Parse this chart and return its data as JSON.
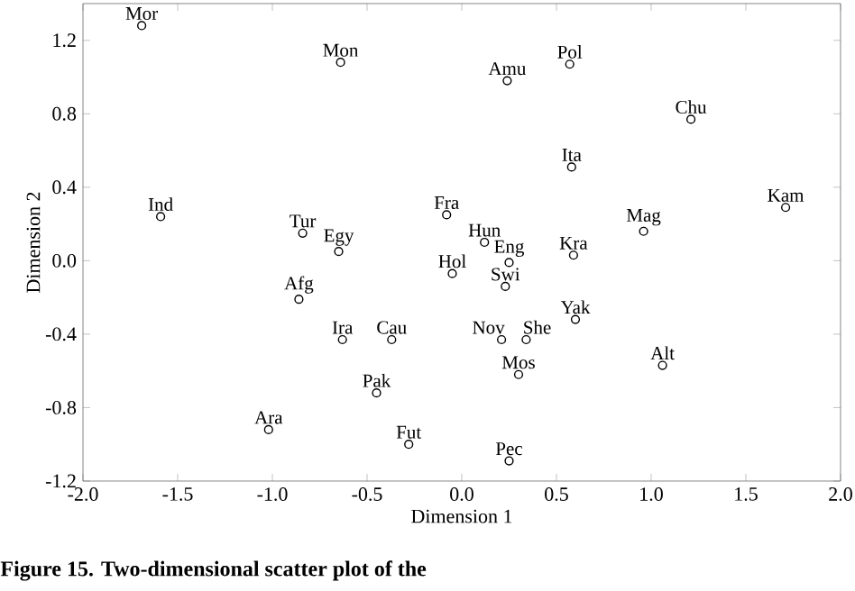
{
  "chart_data": {
    "type": "scatter",
    "xlabel": "Dimension 1",
    "ylabel": "Dimension 2",
    "xlim": [
      -2.0,
      2.0
    ],
    "ylim": [
      -1.2,
      1.4
    ],
    "xticks": [
      {
        "value": -2.0,
        "label": "-2.0"
      },
      {
        "value": -1.5,
        "label": "-1.5"
      },
      {
        "value": -1.0,
        "label": "-1.0"
      },
      {
        "value": -0.5,
        "label": "-0.5"
      },
      {
        "value": 0.0,
        "label": "0.0"
      },
      {
        "value": 0.5,
        "label": "0.5"
      },
      {
        "value": 1.0,
        "label": "1.0"
      },
      {
        "value": 1.5,
        "label": "1.5"
      },
      {
        "value": 2.0,
        "label": "2.0"
      }
    ],
    "yticks": [
      {
        "value": -1.2,
        "label": "-1.2"
      },
      {
        "value": -0.8,
        "label": "-0.8"
      },
      {
        "value": -0.4,
        "label": "-0.4"
      },
      {
        "value": 0.0,
        "label": "0.0"
      },
      {
        "value": 0.4,
        "label": "0.4"
      },
      {
        "value": 0.8,
        "label": "0.8"
      },
      {
        "value": 1.2,
        "label": "1.2"
      }
    ],
    "marker": "circle",
    "grid": false,
    "series": [
      {
        "color": "#000000",
        "x": [
          -1.69,
          -0.64,
          0.24,
          0.57,
          1.21,
          -1.59,
          -0.84,
          -0.65,
          0.58,
          1.71,
          -0.08,
          0.96,
          0.12,
          0.25,
          0.59,
          -0.05,
          -0.86,
          0.23,
          0.6,
          0.21,
          0.34,
          1.06,
          0.3,
          -0.63,
          -0.37,
          -0.45,
          -1.02,
          -0.28,
          0.25
        ],
        "values": [
          1.28,
          1.08,
          0.98,
          1.07,
          0.77,
          0.24,
          0.15,
          0.05,
          0.51,
          0.29,
          0.25,
          0.16,
          0.1,
          -0.01,
          0.03,
          -0.07,
          -0.21,
          -0.14,
          -0.32,
          -0.43,
          -0.43,
          -0.57,
          -0.62,
          -0.43,
          -0.43,
          -0.72,
          -0.92,
          -1.0,
          -1.09
        ]
      }
    ],
    "annotations": [
      {
        "text": "Mor",
        "x": -1.69,
        "y": 1.28
      },
      {
        "text": "Mon",
        "x": -0.64,
        "y": 1.08
      },
      {
        "text": "Amu",
        "x": 0.24,
        "y": 0.98
      },
      {
        "text": "Pol",
        "x": 0.57,
        "y": 1.07
      },
      {
        "text": "Chu",
        "x": 1.21,
        "y": 0.77
      },
      {
        "text": "Ind",
        "x": -1.59,
        "y": 0.24
      },
      {
        "text": "Tur",
        "x": -0.84,
        "y": 0.15
      },
      {
        "text": "Egy",
        "x": -0.65,
        "y": 0.05
      },
      {
        "text": "Ita",
        "x": 0.58,
        "y": 0.51
      },
      {
        "text": "Kam",
        "x": 1.71,
        "y": 0.29
      },
      {
        "text": "Fra",
        "x": -0.08,
        "y": 0.25
      },
      {
        "text": "Mag",
        "x": 0.96,
        "y": 0.16
      },
      {
        "text": "Hun",
        "x": 0.12,
        "y": 0.1
      },
      {
        "text": "Eng",
        "x": 0.25,
        "y": -0.01
      },
      {
        "text": "Kra",
        "x": 0.59,
        "y": 0.03
      },
      {
        "text": "Hol",
        "x": -0.05,
        "y": -0.07
      },
      {
        "text": "Afg",
        "x": -0.86,
        "y": -0.21
      },
      {
        "text": "Swi",
        "x": 0.23,
        "y": -0.14
      },
      {
        "text": "Yak",
        "x": 0.6,
        "y": -0.32
      },
      {
        "text": "Nov",
        "x": 0.21,
        "y": -0.43
      },
      {
        "text": "She",
        "x": 0.34,
        "y": -0.43
      },
      {
        "text": "Alt",
        "x": 1.06,
        "y": -0.57
      },
      {
        "text": "Mos",
        "x": 0.3,
        "y": -0.62
      },
      {
        "text": "Ira",
        "x": -0.63,
        "y": -0.43
      },
      {
        "text": "Cau",
        "x": -0.37,
        "y": -0.43
      },
      {
        "text": "Pak",
        "x": -0.45,
        "y": -0.72
      },
      {
        "text": "Ara",
        "x": -1.02,
        "y": -0.92
      },
      {
        "text": "Fut",
        "x": -0.28,
        "y": -1.0
      },
      {
        "text": "Pec",
        "x": 0.25,
        "y": -1.09
      },
      "Figure 15. Two-dimensional scatter plot of the"
    ]
  }
}
